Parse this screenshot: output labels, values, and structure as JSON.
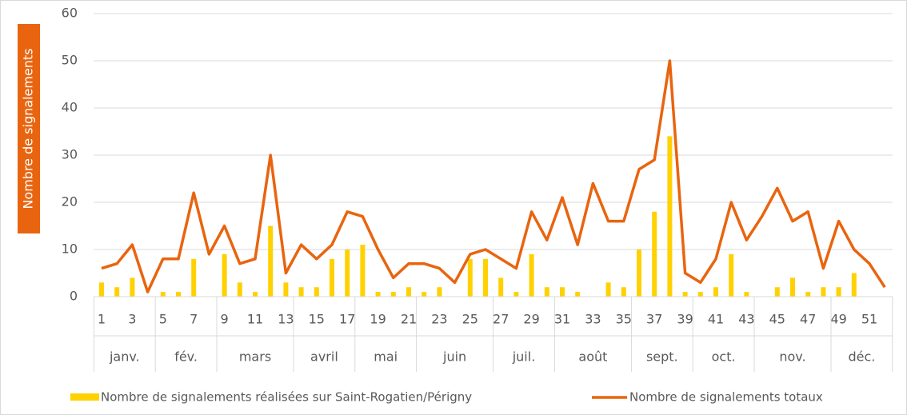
{
  "chart_data": {
    "type": "bar_line",
    "y_label": "Nombre de signalements",
    "categories": [
      1,
      null,
      3,
      null,
      5,
      null,
      7,
      null,
      9,
      null,
      11,
      null,
      13,
      null,
      15,
      null,
      17,
      null,
      19,
      null,
      21,
      null,
      23,
      null,
      25,
      null,
      27,
      null,
      29,
      null,
      31,
      null,
      33,
      null,
      35,
      null,
      37,
      null,
      39,
      null,
      41,
      null,
      43,
      null,
      45,
      null,
      47,
      null,
      49,
      null,
      51,
      null
    ],
    "months": [
      "janv.",
      "janv.",
      "janv.",
      "janv.",
      "fév.",
      "fév.",
      "fév.",
      "fév.",
      "mars",
      "mars",
      "mars",
      "mars",
      "mars",
      "avril",
      "avril",
      "avril",
      "avril",
      "mai",
      "mai",
      "mai",
      "mai",
      "juin",
      "juin",
      "juin",
      "juin",
      "juin",
      "juil.",
      "juil.",
      "juil.",
      "juil.",
      "août",
      "août",
      "août",
      "août",
      "août",
      "sept.",
      "sept.",
      "sept.",
      "sept.",
      "oct.",
      "oct.",
      "oct.",
      "oct.",
      "nov.",
      "nov.",
      "nov.",
      "nov.",
      "nov.",
      "déc.",
      "déc.",
      "déc.",
      "déc."
    ],
    "series": [
      {
        "name": "Nombre de signalements réalisées sur Saint-Rogatien/Périgny",
        "type": "bar",
        "color": "#ffd100",
        "values": [
          3,
          2,
          4,
          0,
          1,
          1,
          8,
          0,
          9,
          3,
          1,
          15,
          3,
          2,
          2,
          8,
          10,
          11,
          1,
          1,
          2,
          1,
          2,
          0,
          8,
          8,
          4,
          1,
          9,
          2,
          2,
          1,
          0,
          3,
          2,
          10,
          18,
          34,
          1,
          1,
          2,
          9,
          1,
          0,
          2,
          4,
          1,
          2,
          2,
          5,
          0,
          0
        ]
      },
      {
        "name": "Nombre de signalements totaux",
        "type": "line",
        "color": "#e9640f",
        "values": [
          6,
          7,
          11,
          1,
          8,
          8,
          22,
          9,
          15,
          7,
          8,
          30,
          5,
          11,
          8,
          11,
          18,
          17,
          10,
          4,
          7,
          7,
          6,
          3,
          9,
          10,
          8,
          6,
          18,
          12,
          21,
          11,
          24,
          16,
          16,
          27,
          29,
          50,
          5,
          3,
          8,
          20,
          12,
          17,
          23,
          16,
          18,
          6,
          16,
          10,
          7,
          2
        ]
      }
    ],
    "ylim": [
      0,
      60
    ],
    "yticks": [
      0,
      10,
      20,
      30,
      40,
      50,
      60
    ],
    "grid": true,
    "legend": "bottom"
  }
}
